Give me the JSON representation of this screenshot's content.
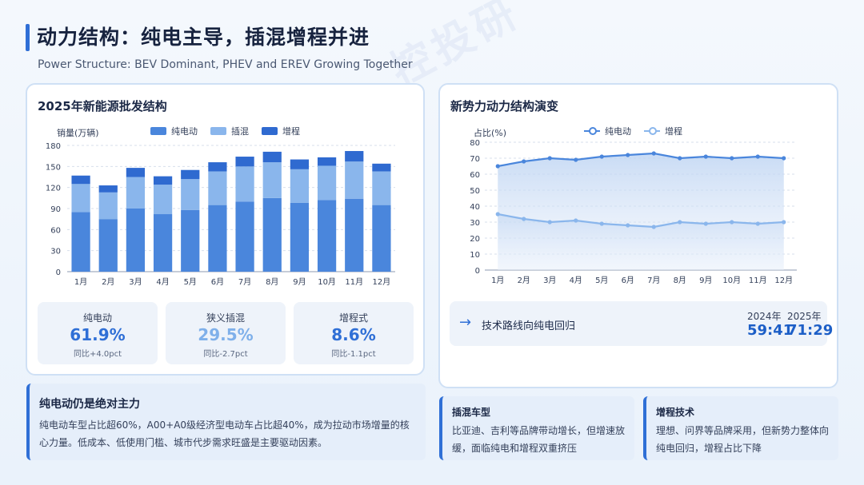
{
  "watermark": "控投研",
  "header": {
    "title": "动力结构：纯电主导，插混增程并进",
    "subtitle": "Power Structure: BEV Dominant, PHEV and EREV Growing Together"
  },
  "left_card": {
    "title": "2025年新能源批发结构",
    "ylabel": "销量(万辆)",
    "legend": [
      "纯电动",
      "插混",
      "增程"
    ],
    "stats": [
      {
        "label": "纯电动",
        "value": "61.9%",
        "change": "同比+4.0pct",
        "color": "#2f6fd6"
      },
      {
        "label": "狭义插混",
        "value": "29.5%",
        "change": "同比-2.7pct",
        "color": "#7fb0ea"
      },
      {
        "label": "增程式",
        "value": "8.6%",
        "change": "同比-1.1pct",
        "color": "#2f6fd6"
      }
    ]
  },
  "right_card": {
    "title": "新势力动力结构演变",
    "ylabel": "占比(%)",
    "legend": [
      "纯电动",
      "增程"
    ],
    "trend": {
      "arrow": "→",
      "text": "技术路线向纯电回归",
      "year1": "2024年",
      "ratio1": "59:41",
      "year2": "2025年",
      "ratio2": "71:29"
    }
  },
  "notes": [
    {
      "title": "纯电动仍是绝对主力",
      "body": "纯电动车型占比超60%，A00+A0级经济型电动车占比超40%，成为拉动市场增量的核心力量。低成本、低使用门槛、城市代步需求旺盛是主要驱动因素。"
    },
    {
      "title": "插混车型",
      "body": "比亚迪、吉利等品牌带动增长，但增速放缓，面临纯电和增程双重挤压"
    },
    {
      "title": "增程技术",
      "body": "理想、问界等品牌采用，但新势力整体向纯电回归，增程占比下降"
    }
  ],
  "colors": {
    "bev": "#4a86dc",
    "phev": "#8ab6ec",
    "erev": "#2f6ad0",
    "line_bev": "#4a86dc",
    "line_erev": "#8ab6ec"
  },
  "chart_data": [
    {
      "type": "bar",
      "stacked": true,
      "title": "2025年新能源批发结构",
      "ylabel": "销量(万辆)",
      "categories": [
        "1月",
        "2月",
        "3月",
        "4月",
        "5月",
        "6月",
        "7月",
        "8月",
        "9月",
        "10月",
        "11月",
        "12月"
      ],
      "ylim": [
        0,
        180
      ],
      "yticks": [
        0,
        30,
        60,
        90,
        120,
        150,
        180
      ],
      "grid": true,
      "legend": "top",
      "series": [
        {
          "name": "纯电动",
          "values": [
            85,
            75,
            90,
            82,
            88,
            95,
            100,
            105,
            98,
            102,
            104,
            95
          ]
        },
        {
          "name": "插混",
          "values": [
            40,
            38,
            45,
            42,
            44,
            48,
            50,
            51,
            48,
            49,
            53,
            48
          ]
        },
        {
          "name": "增程",
          "values": [
            12,
            10,
            13,
            12,
            13,
            13,
            14,
            15,
            14,
            12,
            15,
            11
          ]
        }
      ]
    },
    {
      "type": "area",
      "title": "新势力动力结构演变",
      "ylabel": "占比(%)",
      "categories": [
        "1月",
        "2月",
        "3月",
        "4月",
        "5月",
        "6月",
        "7月",
        "8月",
        "9月",
        "10月",
        "11月",
        "12月"
      ],
      "ylim": [
        0,
        80
      ],
      "yticks": [
        0,
        10,
        20,
        30,
        40,
        50,
        60,
        70,
        80
      ],
      "grid": true,
      "legend": "top",
      "series": [
        {
          "name": "纯电动",
          "values": [
            65,
            68,
            70,
            69,
            71,
            72,
            73,
            70,
            71,
            70,
            71,
            70
          ]
        },
        {
          "name": "增程",
          "values": [
            35,
            32,
            30,
            31,
            29,
            28,
            27,
            30,
            29,
            30,
            29,
            30
          ]
        }
      ]
    }
  ]
}
